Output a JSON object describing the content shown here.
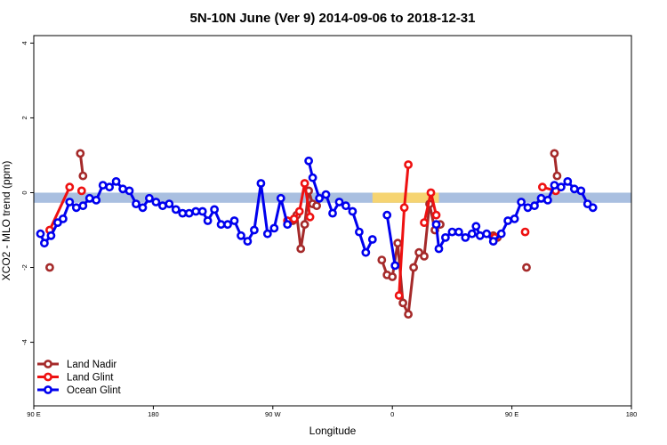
{
  "chart_data": {
    "type": "line",
    "title": "5N-10N June (Ver 9)   2014-09-06 to 2018-12-31",
    "xlabel": "Longitude",
    "ylabel": "XCO2 - MLO trend (ppm)",
    "xlim": [
      90,
      540
    ],
    "ylim": [
      -5.7,
      4.2
    ],
    "x_ticks": [
      {
        "x": 90,
        "label": "90 E"
      },
      {
        "x": 180,
        "label": "180"
      },
      {
        "x": 270,
        "label": "90 W"
      },
      {
        "x": 360,
        "label": "0"
      },
      {
        "x": 450,
        "label": "90 E"
      },
      {
        "x": 540,
        "label": "180"
      }
    ],
    "y_ticks": [
      {
        "y": -4,
        "label": "-4"
      },
      {
        "y": -2,
        "label": "-2"
      },
      {
        "y": 0,
        "label": "0"
      },
      {
        "y": 2,
        "label": "2"
      },
      {
        "y": 4,
        "label": "4"
      }
    ],
    "background_band": {
      "ymin": -0.27,
      "ymax": 0.0,
      "color": "#a9bfe0",
      "land_color": "#f6d471",
      "land_spans": [
        [
          345,
          395
        ]
      ]
    },
    "legend_position": "bottom-left",
    "series": [
      {
        "name": "Land Nadir",
        "color": "#a52a2a",
        "segments": [
          [
            [
              102,
              -2.0
            ]
          ],
          [
            [
              125,
              1.05
            ],
            [
              127,
              0.45
            ]
          ],
          [
            [
              285,
              -0.75
            ],
            [
              288,
              -0.6
            ],
            [
              291,
              -1.5
            ],
            [
              294,
              -0.85
            ],
            [
              297,
              0.05
            ],
            [
              300,
              -0.3
            ],
            [
              303,
              -0.35
            ]
          ],
          [
            [
              352,
              -1.8
            ],
            [
              356,
              -2.2
            ],
            [
              360,
              -2.25
            ],
            [
              364,
              -1.35
            ],
            [
              368,
              -2.95
            ],
            [
              372,
              -3.25
            ],
            [
              376,
              -2.0
            ],
            [
              380,
              -1.6
            ],
            [
              384,
              -1.7
            ],
            [
              388,
              -0.3
            ],
            [
              392,
              -1.0
            ],
            [
              396,
              -0.85
            ]
          ],
          [
            [
              436,
              -1.15
            ],
            [
              439,
              -1.2
            ]
          ],
          [
            [
              461,
              -2.0
            ]
          ],
          [
            [
              482,
              1.05
            ],
            [
              484,
              0.45
            ]
          ]
        ]
      },
      {
        "name": "Land Glint",
        "color": "#ee1111",
        "segments": [
          [
            [
              102,
              -1.0
            ],
            [
              117,
              0.15
            ]
          ],
          [
            [
              126,
              0.05
            ]
          ],
          [
            [
              281,
              -0.75
            ],
            [
              286,
              -0.7
            ],
            [
              290,
              -0.5
            ],
            [
              294,
              0.25
            ],
            [
              298,
              -0.65
            ]
          ],
          [
            [
              365,
              -2.75
            ],
            [
              369,
              -0.4
            ],
            [
              372,
              0.75
            ]
          ],
          [
            [
              384,
              -0.8
            ],
            [
              389,
              0.0
            ],
            [
              393,
              -0.6
            ]
          ],
          [
            [
              437,
              -1.2
            ]
          ],
          [
            [
              460,
              -1.05
            ]
          ],
          [
            [
              473,
              0.15
            ],
            [
              483,
              0.05
            ]
          ]
        ]
      },
      {
        "name": "Ocean Glint",
        "color": "#0000ee",
        "segments": [
          [
            [
              95,
              -1.1
            ],
            [
              98,
              -1.35
            ],
            [
              103,
              -1.15
            ],
            [
              108,
              -0.8
            ],
            [
              112,
              -0.7
            ],
            [
              117,
              -0.25
            ],
            [
              122,
              -0.4
            ],
            [
              127,
              -0.35
            ],
            [
              132,
              -0.15
            ],
            [
              137,
              -0.2
            ],
            [
              142,
              0.2
            ],
            [
              147,
              0.15
            ],
            [
              152,
              0.3
            ],
            [
              157,
              0.1
            ],
            [
              162,
              0.05
            ],
            [
              167,
              -0.3
            ],
            [
              172,
              -0.4
            ],
            [
              177,
              -0.15
            ],
            [
              182,
              -0.25
            ],
            [
              187,
              -0.35
            ],
            [
              192,
              -0.3
            ],
            [
              197,
              -0.45
            ],
            [
              202,
              -0.55
            ],
            [
              207,
              -0.55
            ],
            [
              212,
              -0.5
            ],
            [
              217,
              -0.5
            ],
            [
              221,
              -0.75
            ],
            [
              226,
              -0.45
            ],
            [
              231,
              -0.85
            ],
            [
              236,
              -0.85
            ],
            [
              241,
              -0.75
            ],
            [
              246,
              -1.15
            ],
            [
              251,
              -1.3
            ],
            [
              256,
              -1.0
            ],
            [
              261,
              0.25
            ],
            [
              266,
              -1.1
            ],
            [
              271,
              -0.95
            ],
            [
              276,
              -0.15
            ],
            [
              281,
              -0.85
            ]
          ],
          [
            [
              297,
              0.85
            ],
            [
              300,
              0.4
            ],
            [
              305,
              -0.15
            ],
            [
              310,
              -0.05
            ],
            [
              315,
              -0.55
            ],
            [
              320,
              -0.25
            ],
            [
              325,
              -0.35
            ],
            [
              330,
              -0.5
            ],
            [
              335,
              -1.05
            ],
            [
              340,
              -1.6
            ],
            [
              345,
              -1.25
            ]
          ],
          [
            [
              356,
              -0.6
            ],
            [
              362,
              -1.95
            ]
          ],
          [
            [
              393,
              -0.85
            ],
            [
              395,
              -1.5
            ],
            [
              400,
              -1.2
            ],
            [
              405,
              -1.05
            ],
            [
              410,
              -1.05
            ],
            [
              415,
              -1.2
            ],
            [
              420,
              -1.1
            ],
            [
              423,
              -0.9
            ],
            [
              426,
              -1.15
            ],
            [
              431,
              -1.1
            ],
            [
              436,
              -1.3
            ],
            [
              442,
              -1.1
            ],
            [
              447,
              -0.75
            ],
            [
              452,
              -0.7
            ],
            [
              457,
              -0.25
            ],
            [
              462,
              -0.4
            ],
            [
              467,
              -0.35
            ],
            [
              472,
              -0.15
            ],
            [
              477,
              -0.2
            ],
            [
              482,
              0.2
            ],
            [
              487,
              0.15
            ],
            [
              492,
              0.3
            ],
            [
              497,
              0.1
            ],
            [
              502,
              0.05
            ],
            [
              507,
              -0.3
            ],
            [
              511,
              -0.4
            ]
          ]
        ]
      }
    ]
  }
}
